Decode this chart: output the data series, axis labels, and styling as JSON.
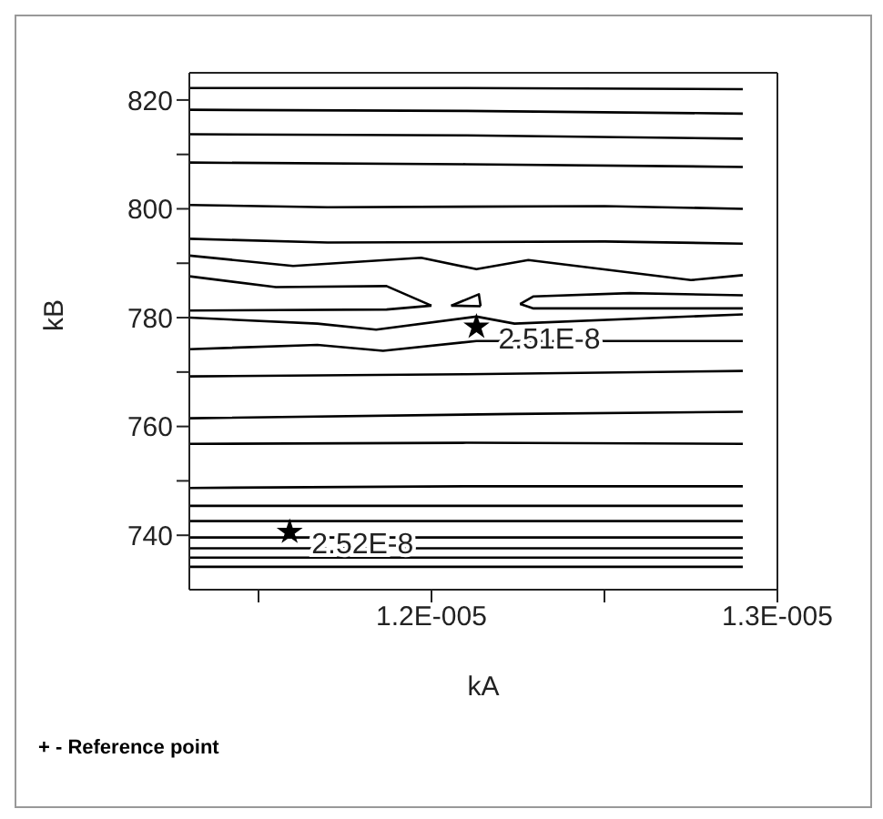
{
  "chart_data": {
    "type": "line",
    "xlabel": "kA",
    "ylabel": "kB",
    "xlim": [
      1.13e-05,
      1.3e-05
    ],
    "xticks": [
      {
        "value": 1.15e-05,
        "label": null
      },
      {
        "value": 1.2e-05,
        "label": "1.2E-005"
      },
      {
        "value": 1.25e-05,
        "label": null
      },
      {
        "value": 1.3e-05,
        "label": "1.3E-005"
      }
    ],
    "ylim": [
      730,
      825
    ],
    "yticks": [
      740,
      {
        "value": 750,
        "label": null
      },
      760,
      {
        "value": 770,
        "label": null
      },
      780,
      {
        "value": 790,
        "label": null
      },
      800,
      {
        "value": 810,
        "label": null
      },
      820
    ],
    "marker": "none",
    "line_style": "solid",
    "series": [
      {
        "color": "#000000",
        "x": [
          1.13e-05,
          1.21e-05,
          1.29e-05
        ],
        "values": [
          822.2,
          822.2,
          822
        ]
      },
      {
        "color": "#000000",
        "x": [
          1.13e-05,
          1.21e-05,
          1.29e-05
        ],
        "values": [
          818.2,
          818,
          817.5
        ]
      },
      {
        "color": "#000000",
        "x": [
          1.13e-05,
          1.21e-05,
          1.29e-05
        ],
        "values": [
          813.7,
          813.5,
          812.9
        ]
      },
      {
        "color": "#000000",
        "x": [
          1.13e-05,
          1.21e-05,
          1.29e-05
        ],
        "values": [
          808.5,
          808.2,
          807.7
        ]
      },
      {
        "color": "#000000",
        "x": [
          1.13e-05,
          1.17e-05,
          1.25e-05,
          1.29e-05
        ],
        "values": [
          800.7,
          800.3,
          800.5,
          800
        ]
      },
      {
        "color": "#000000",
        "x": [
          1.13e-05,
          1.17e-05,
          1.25e-05,
          1.29e-05
        ],
        "values": [
          794.5,
          793.8,
          794,
          793.6
        ]
      },
      {
        "color": "#000000",
        "x": [
          1.13e-05,
          1.16e-05,
          1.197e-05,
          1.213e-05,
          1.228e-05,
          1.275e-05,
          1.29e-05
        ],
        "values": [
          791.4,
          789.5,
          791,
          788.9,
          790.6,
          786.9,
          787.8
        ]
      },
      {
        "color": "#000000",
        "x": [
          1.13e-05,
          1.155e-05,
          1.187e-05,
          1.2e-05
        ],
        "values": [
          787.6,
          785.6,
          785.8,
          782.2
        ]
      },
      {
        "color": "#000000",
        "x": [
          1.13e-05,
          1.187e-05,
          1.2e-05
        ],
        "values": [
          781.3,
          781.5,
          782.2
        ]
      },
      {
        "color": "#000000",
        "x": [
          1.2256e-05,
          1.2295e-05,
          1.2574e-05,
          1.29e-05
        ],
        "values": [
          782.5,
          783.9,
          784.5,
          784.1
        ]
      },
      {
        "color": "#000000",
        "x": [
          1.2256e-05,
          1.2295e-05,
          1.29e-05
        ],
        "values": [
          782.5,
          781.7,
          781.7
        ]
      },
      {
        "color": "#000000",
        "x": [
          1.2057e-05,
          1.2137e-05,
          1.2142e-05
        ],
        "values": [
          782.2,
          784.3,
          782.1
        ]
      },
      {
        "color": "#000000",
        "x": [
          1.2057e-05,
          1.2142e-05
        ],
        "values": [
          782.2,
          782.1
        ]
      },
      {
        "color": "#000000",
        "x": [
          1.13e-05,
          1.167e-05,
          1.184e-05,
          1.213e-05,
          1.224e-05,
          1.29e-05
        ],
        "values": [
          780,
          778.9,
          777.8,
          780.2,
          778.9,
          780.6
        ]
      },
      {
        "color": "#000000",
        "x": [
          1.13e-05,
          1.167e-05,
          1.186e-05,
          1.213e-05,
          1.29e-05
        ],
        "values": [
          774.2,
          775,
          773.9,
          775.7,
          775.7
        ]
      },
      {
        "color": "#000000",
        "x": [
          1.13e-05,
          1.21e-05,
          1.29e-05
        ],
        "values": [
          769.2,
          769.6,
          770.2
        ]
      },
      {
        "color": "#000000",
        "x": [
          1.13e-05,
          1.224e-05,
          1.29e-05
        ],
        "values": [
          761.5,
          762.3,
          762.7
        ]
      },
      {
        "color": "#000000",
        "x": [
          1.13e-05,
          1.21e-05,
          1.29e-05
        ],
        "values": [
          756.8,
          757,
          756.8
        ]
      },
      {
        "color": "#000000",
        "x": [
          1.13e-05,
          1.21e-05,
          1.29e-05
        ],
        "values": [
          748.7,
          749,
          749
        ]
      },
      {
        "color": "#000000",
        "x": [
          1.13e-05,
          1.29e-05
        ],
        "values": [
          745.4,
          745.4
        ]
      },
      {
        "color": "#000000",
        "x": [
          1.13e-05,
          1.29e-05
        ],
        "values": [
          742.6,
          742.6
        ]
      },
      {
        "color": "#000000",
        "x": [
          1.13e-05,
          1.29e-05
        ],
        "values": [
          739.6,
          739.6
        ]
      },
      {
        "color": "#000000",
        "x": [
          1.13e-05,
          1.29e-05
        ],
        "values": [
          737.6,
          737.6
        ]
      },
      {
        "color": "#000000",
        "x": [
          1.13e-05,
          1.29e-05
        ],
        "values": [
          735.9,
          735.9
        ]
      },
      {
        "color": "#000000",
        "x": [
          1.13e-05,
          1.29e-05
        ],
        "values": [
          734.2,
          734.2
        ]
      },
      {
        "type": "scatter",
        "marker": "star",
        "color": "#000000",
        "x": [
          1.213e-05,
          1.159e-05
        ],
        "values": [
          778.3,
          740.6
        ]
      }
    ],
    "annotations": [
      {
        "text": "2.51E-8",
        "x": 1.213e-05,
        "y": 778.3
      },
      {
        "text": "2.52E-8",
        "x": 1.159e-05,
        "y": 740.6
      },
      "+ - Reference point"
    ]
  }
}
